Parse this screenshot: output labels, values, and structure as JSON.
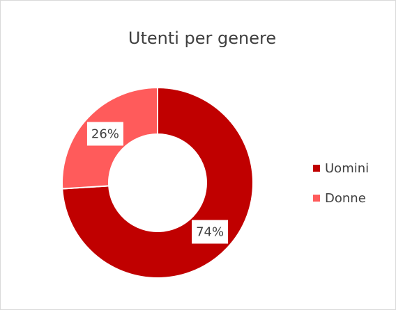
{
  "chart_data": {
    "type": "donut",
    "title": "Utenti per genere",
    "categories": [
      "Uomini",
      "Donne"
    ],
    "values": [
      74,
      26
    ],
    "value_labels": [
      "74%",
      "26%"
    ],
    "colors": [
      "#c00000",
      "#ff5b5b"
    ],
    "legend": "right"
  }
}
